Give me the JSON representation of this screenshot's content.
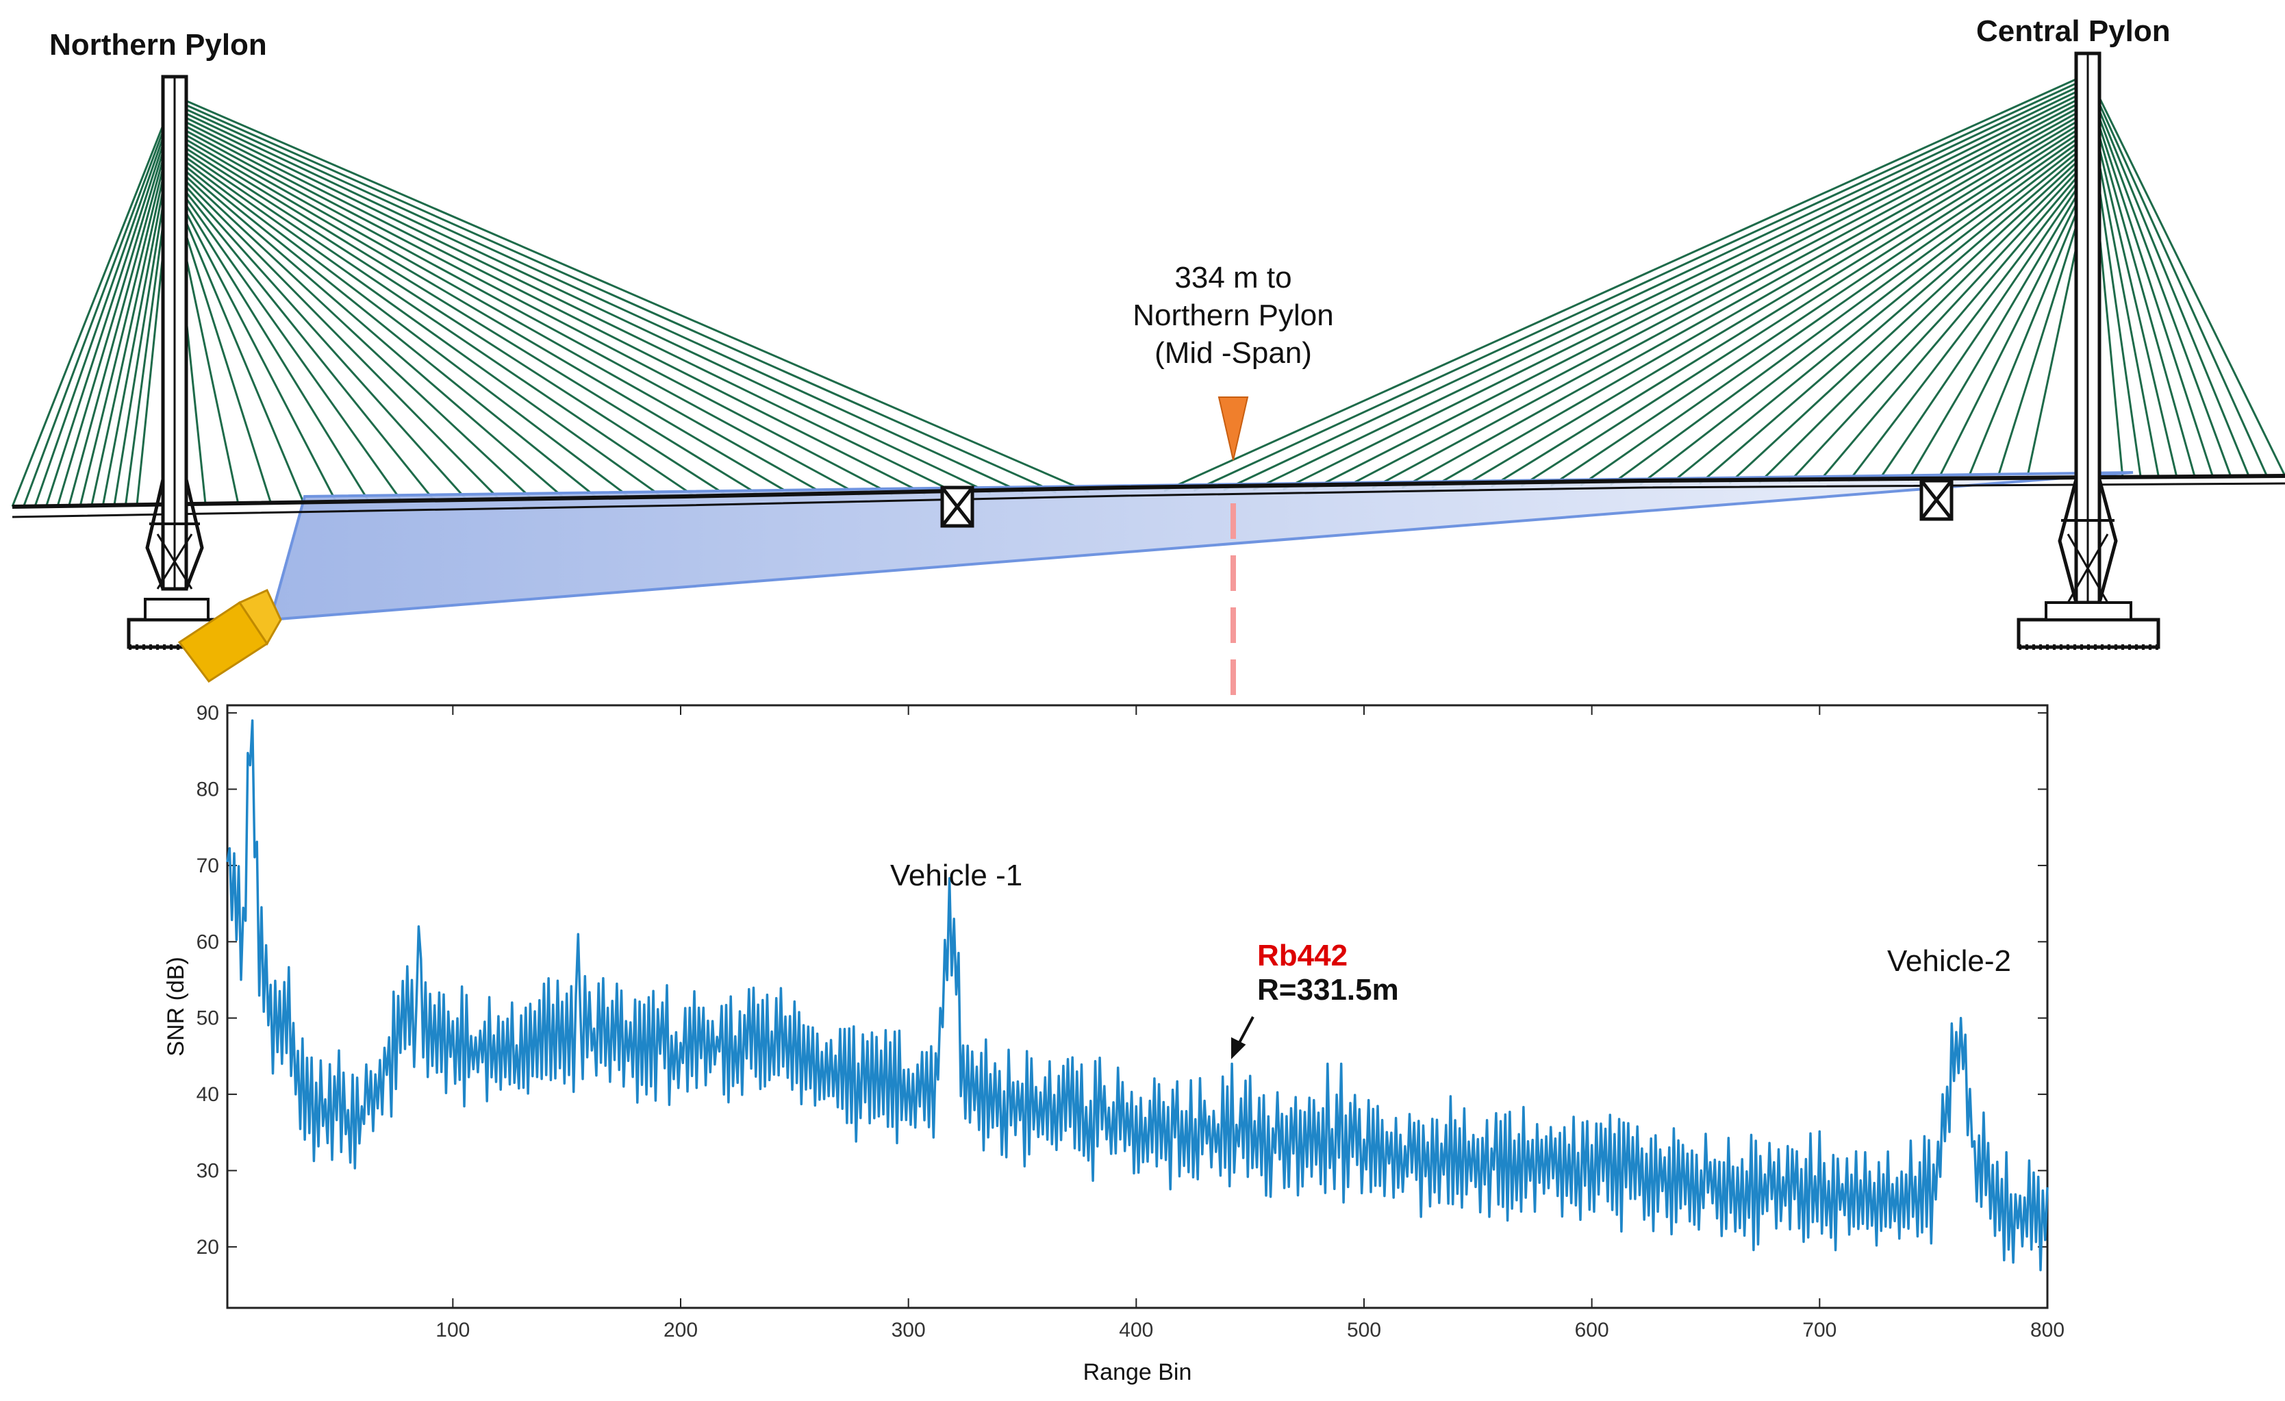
{
  "figure": {
    "labels": {
      "northern_pylon": "Northern Pylon",
      "central_pylon": "Central Pylon",
      "midspan_line1": "334 m to",
      "midspan_line2": "Northern Pylon",
      "midspan_line3": "(Mid -Span)",
      "vehicle1": "Vehicle -1",
      "vehicle2": "Vehicle-2",
      "rb_bin": "Rb442",
      "rb_range": "R=331.5m"
    },
    "colors": {
      "cable": "#1e6b4a",
      "signal": "#1f86c8",
      "marker": "#f07f2c",
      "radar": "#f0b400",
      "beam": "#b8c8ee",
      "dashed": "#f59a9a",
      "rb_label": "#dd0000"
    },
    "icons": [
      "radar-device-icon",
      "corner-reflector-icon",
      "midspan-marker-icon"
    ]
  },
  "chart_data": {
    "type": "line",
    "title": "",
    "xlabel": "Range Bin",
    "ylabel": "SNR (dB)",
    "xlim": [
      1,
      800
    ],
    "ylim": [
      12,
      91
    ],
    "xticks": [
      100,
      200,
      300,
      400,
      500,
      600,
      700,
      800
    ],
    "yticks": [
      20,
      30,
      40,
      50,
      60,
      70,
      80,
      90
    ],
    "grid": false,
    "annotations": [
      {
        "text": "Vehicle -1",
        "x": 318,
        "y": 63
      },
      {
        "text": "Vehicle-2",
        "x": 762,
        "y": 50
      },
      {
        "text": "Rb442",
        "x": 442,
        "y": 44
      },
      {
        "text": "R=331.5m",
        "x": 442,
        "y": 44
      }
    ],
    "trend": [
      [
        1,
        71
      ],
      [
        5,
        66
      ],
      [
        8,
        60
      ],
      [
        11,
        89
      ],
      [
        15,
        58
      ],
      [
        22,
        48
      ],
      [
        28,
        50
      ],
      [
        32,
        42
      ],
      [
        40,
        37
      ],
      [
        50,
        38
      ],
      [
        60,
        36
      ],
      [
        70,
        43
      ],
      [
        80,
        50
      ],
      [
        100,
        47
      ],
      [
        130,
        46
      ],
      [
        160,
        48
      ],
      [
        200,
        46
      ],
      [
        240,
        47
      ],
      [
        280,
        42
      ],
      [
        300,
        41
      ],
      [
        312,
        41
      ],
      [
        318,
        63
      ],
      [
        324,
        45
      ],
      [
        330,
        39
      ],
      [
        360,
        38
      ],
      [
        400,
        36
      ],
      [
        442,
        35
      ],
      [
        480,
        34
      ],
      [
        520,
        32
      ],
      [
        560,
        31
      ],
      [
        600,
        30
      ],
      [
        650,
        28
      ],
      [
        700,
        27
      ],
      [
        730,
        26
      ],
      [
        750,
        28
      ],
      [
        762,
        50
      ],
      [
        768,
        32
      ],
      [
        780,
        26
      ],
      [
        800,
        23
      ]
    ],
    "spikes": [
      {
        "x": 442,
        "y": 44
      },
      {
        "x": 484,
        "y": 44
      },
      {
        "x": 490,
        "y": 44
      },
      {
        "x": 320,
        "y": 63
      },
      {
        "x": 762,
        "y": 50
      },
      {
        "x": 12,
        "y": 89
      },
      {
        "x": 85,
        "y": 62
      },
      {
        "x": 155,
        "y": 61
      }
    ],
    "amplitude": 4.5,
    "points": 800
  }
}
